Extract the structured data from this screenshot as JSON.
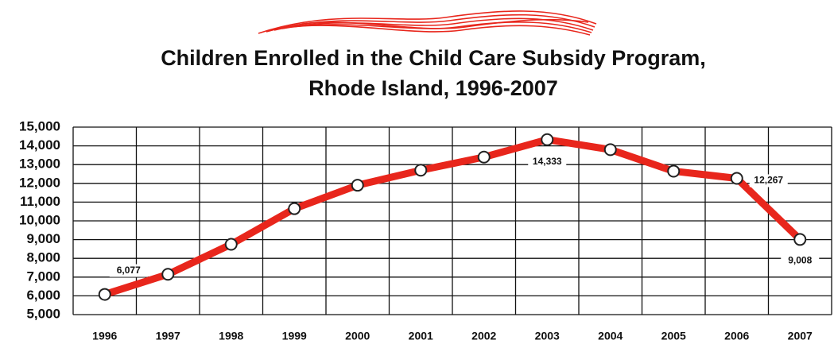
{
  "chart_data": {
    "type": "line",
    "title": "Children Enrolled in the Child Care Subsidy Program,\nRhode Island, 1996-2007",
    "categories": [
      "1996",
      "1997",
      "1998",
      "1999",
      "2000",
      "2001",
      "2002",
      "2003",
      "2004",
      "2005",
      "2006",
      "2007"
    ],
    "values": [
      6077,
      7150,
      8750,
      10650,
      11900,
      12700,
      13400,
      14333,
      13800,
      12650,
      12267,
      9008
    ],
    "value_labels": [
      "6,077",
      null,
      null,
      null,
      null,
      null,
      null,
      "14,333",
      null,
      null,
      "12,267",
      "9,008"
    ],
    "color": "#e8261c",
    "ylim": [
      5000,
      15000
    ],
    "yticks": [
      {
        "value": 5000,
        "label": "5,000"
      },
      {
        "value": 6000,
        "label": "6,000"
      },
      {
        "value": 7000,
        "label": "7,000"
      },
      {
        "value": 8000,
        "label": "8,000"
      },
      {
        "value": 9000,
        "label": "9,000"
      },
      {
        "value": 10000,
        "label": "10,000"
      },
      {
        "value": 11000,
        "label": "11,000"
      },
      {
        "value": 12000,
        "label": "12,000"
      },
      {
        "value": 13000,
        "label": "13,000"
      },
      {
        "value": 14000,
        "label": "14,000"
      },
      {
        "value": 15000,
        "label": "15,000"
      }
    ],
    "grid": true
  }
}
